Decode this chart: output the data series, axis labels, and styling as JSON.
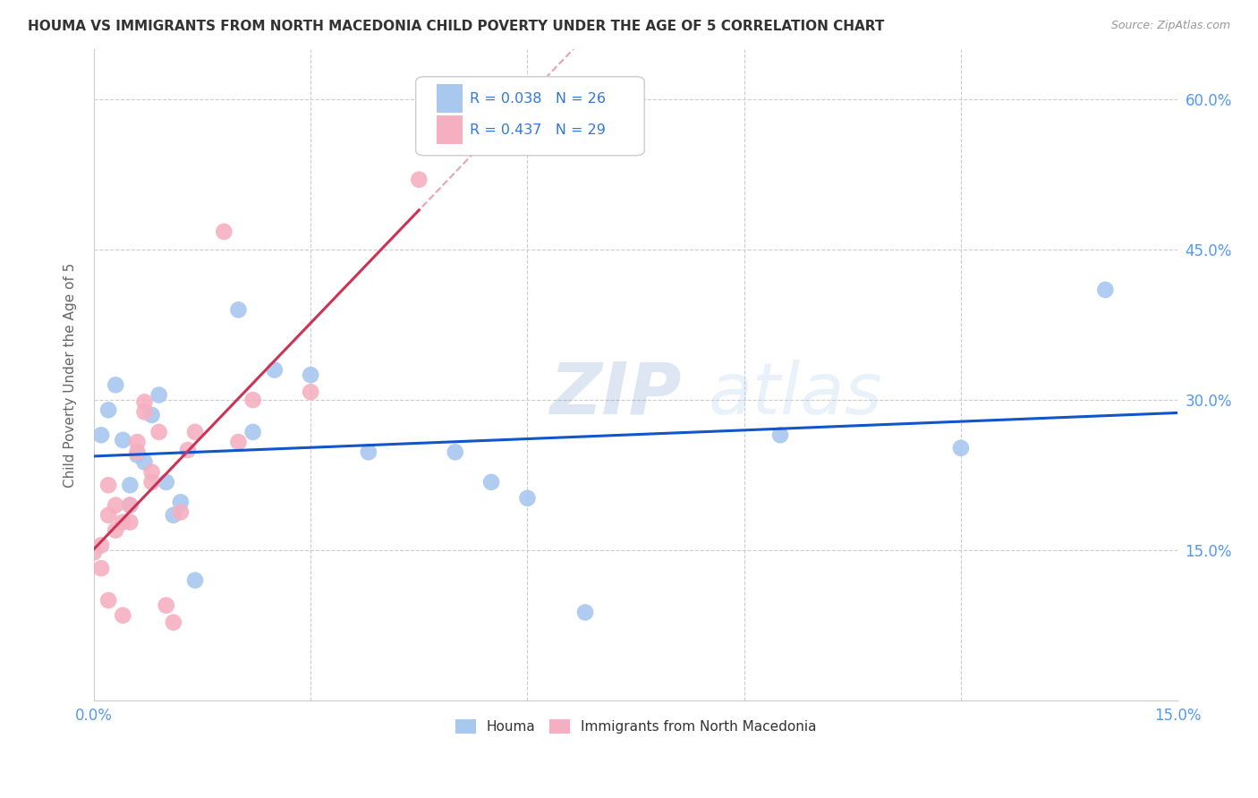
{
  "title": "HOUMA VS IMMIGRANTS FROM NORTH MACEDONIA CHILD POVERTY UNDER THE AGE OF 5 CORRELATION CHART",
  "source": "Source: ZipAtlas.com",
  "ylabel": "Child Poverty Under the Age of 5",
  "xlim": [
    0.0,
    0.15
  ],
  "ylim": [
    0.0,
    0.65
  ],
  "xticks": [
    0.0,
    0.03,
    0.06,
    0.09,
    0.12,
    0.15
  ],
  "yticks": [
    0.15,
    0.3,
    0.45,
    0.6
  ],
  "houma_R": 0.038,
  "houma_N": 26,
  "immig_R": 0.437,
  "immig_N": 29,
  "houma_color": "#a8c8f0",
  "immig_color": "#f5afc0",
  "houma_line_color": "#1155cc",
  "immig_line_color": "#cc3355",
  "watermark_zip": "ZIP",
  "watermark_atlas": "atlas",
  "houma_x": [
    0.001,
    0.002,
    0.003,
    0.004,
    0.005,
    0.005,
    0.006,
    0.007,
    0.008,
    0.009,
    0.01,
    0.011,
    0.012,
    0.014,
    0.02,
    0.022,
    0.025,
    0.03,
    0.038,
    0.05,
    0.055,
    0.06,
    0.068,
    0.095,
    0.12,
    0.14
  ],
  "houma_y": [
    0.265,
    0.29,
    0.315,
    0.26,
    0.195,
    0.215,
    0.245,
    0.238,
    0.285,
    0.305,
    0.218,
    0.185,
    0.198,
    0.12,
    0.39,
    0.268,
    0.33,
    0.325,
    0.248,
    0.248,
    0.218,
    0.202,
    0.088,
    0.265,
    0.252,
    0.41
  ],
  "immig_x": [
    0.0,
    0.001,
    0.001,
    0.002,
    0.002,
    0.002,
    0.003,
    0.003,
    0.004,
    0.004,
    0.005,
    0.005,
    0.006,
    0.006,
    0.007,
    0.007,
    0.008,
    0.008,
    0.009,
    0.01,
    0.011,
    0.012,
    0.013,
    0.014,
    0.018,
    0.02,
    0.022,
    0.03,
    0.045
  ],
  "immig_y": [
    0.148,
    0.132,
    0.155,
    0.215,
    0.185,
    0.1,
    0.17,
    0.195,
    0.178,
    0.085,
    0.178,
    0.195,
    0.248,
    0.258,
    0.288,
    0.298,
    0.218,
    0.228,
    0.268,
    0.095,
    0.078,
    0.188,
    0.25,
    0.268,
    0.468,
    0.258,
    0.3,
    0.308,
    0.52
  ],
  "legend_label_houma": "Houma",
  "legend_label_immig": "Immigrants from North Macedonia"
}
